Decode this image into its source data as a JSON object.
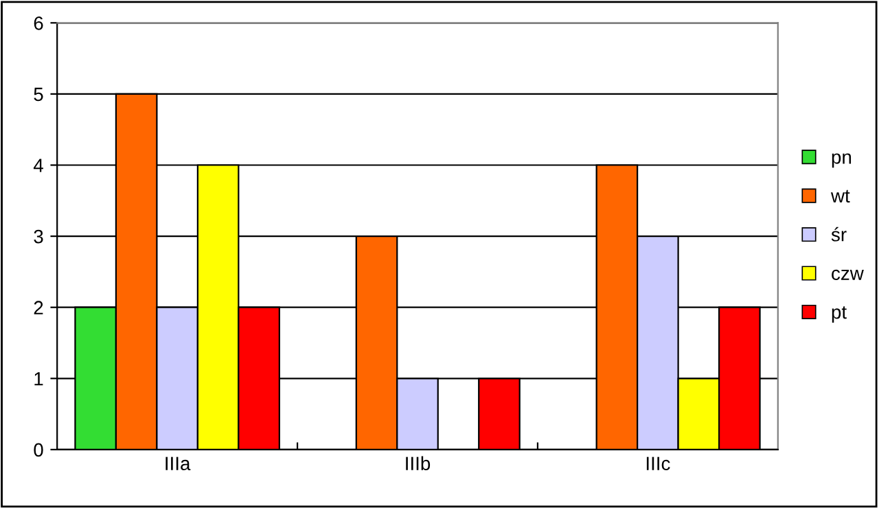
{
  "chart_data": {
    "type": "bar",
    "categories": [
      "IIIa",
      "IIIb",
      "IIIc"
    ],
    "series": [
      {
        "name": "pn",
        "color": "#33dd33",
        "values": [
          2,
          null,
          null
        ]
      },
      {
        "name": "wt",
        "color": "#ff6600",
        "values": [
          5,
          3,
          4
        ]
      },
      {
        "name": "śr",
        "color": "#ccccff",
        "values": [
          2,
          1,
          3
        ]
      },
      {
        "name": "czw",
        "color": "#ffff00",
        "values": [
          4,
          null,
          1
        ]
      },
      {
        "name": "pt",
        "color": "#ff0000",
        "values": [
          2,
          1,
          2
        ]
      }
    ],
    "ylim": [
      0,
      6
    ],
    "yticks": [
      0,
      1,
      2,
      3,
      4,
      5,
      6
    ],
    "grid": "y",
    "legend": "right"
  }
}
